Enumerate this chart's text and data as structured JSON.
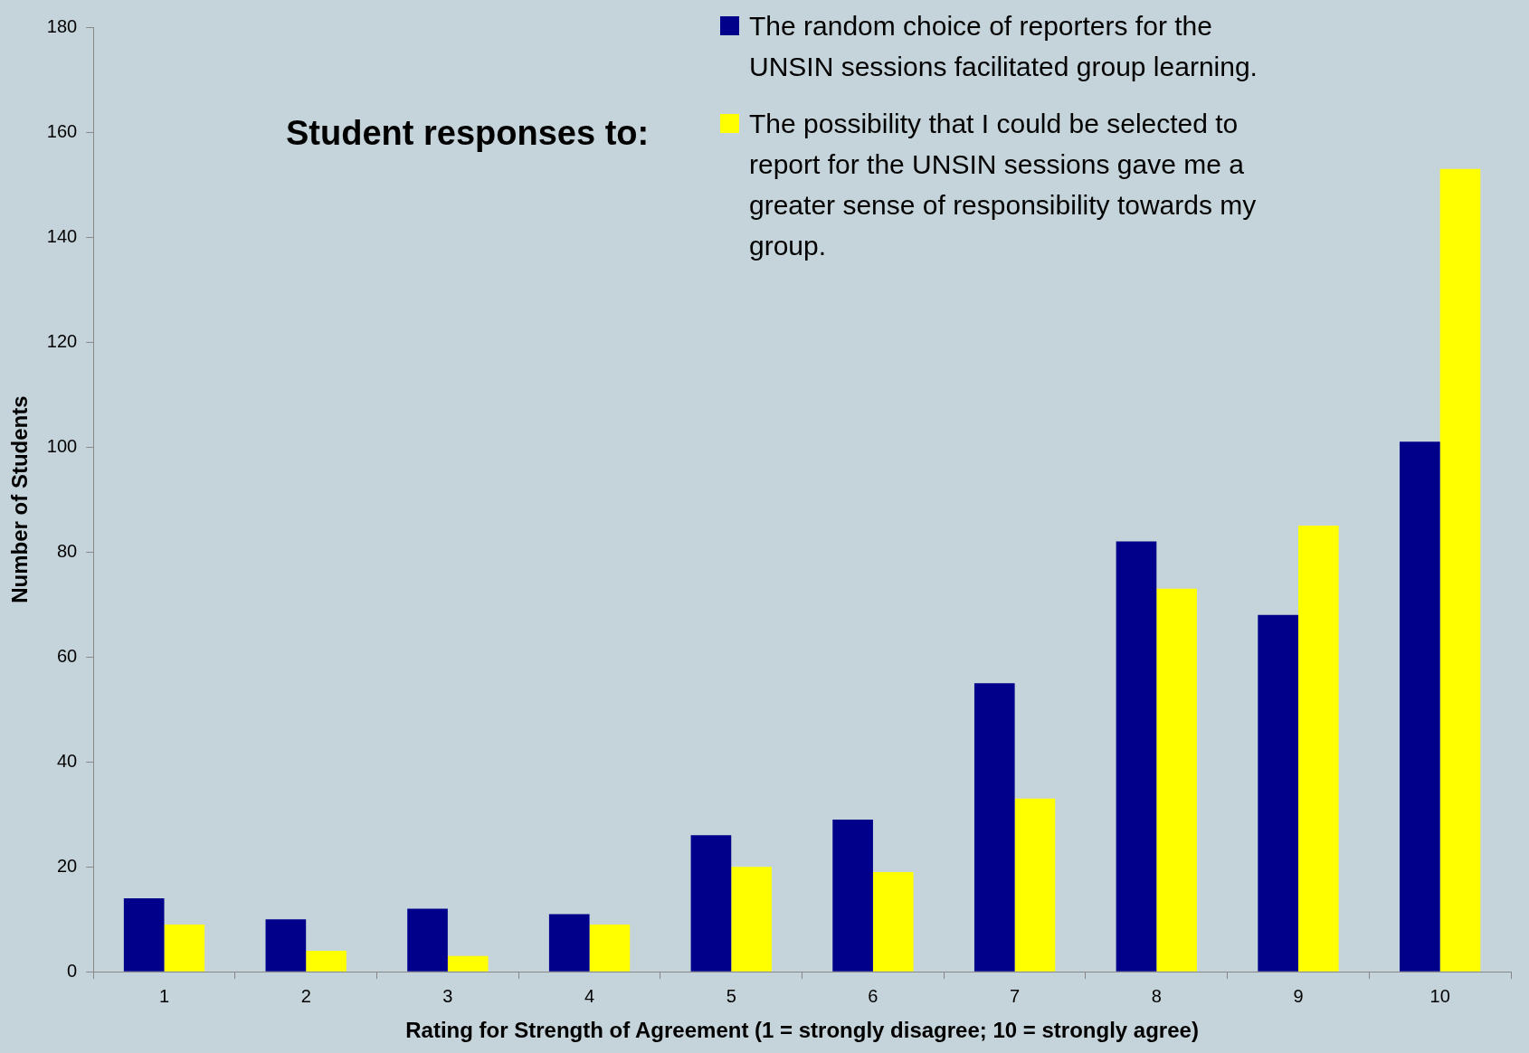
{
  "chart_data": {
    "type": "bar",
    "title": "Student responses to:",
    "xlabel": "Rating for Strength of Agreement (1 = strongly disagree; 10 = strongly agree)",
    "ylabel": "Number of Students",
    "categories": [
      "1",
      "2",
      "3",
      "4",
      "5",
      "6",
      "7",
      "8",
      "9",
      "10"
    ],
    "series": [
      {
        "name": "The random choice of reporters for the UNSIN sessions facilitated group learning.",
        "color": "#00008b",
        "values": [
          14,
          10,
          12,
          11,
          26,
          29,
          55,
          82,
          68,
          101
        ]
      },
      {
        "name": "The possibility that I could be selected to report for the UNSIN sessions gave me a greater sense of responsibility towards my group.",
        "color": "#ffff00",
        "values": [
          9,
          4,
          3,
          9,
          20,
          19,
          33,
          73,
          85,
          153
        ]
      }
    ],
    "ylim": [
      0,
      180
    ],
    "yticks": [
      0,
      20,
      40,
      60,
      80,
      100,
      120,
      140,
      160,
      180
    ],
    "grid": false,
    "legend": "top right"
  }
}
